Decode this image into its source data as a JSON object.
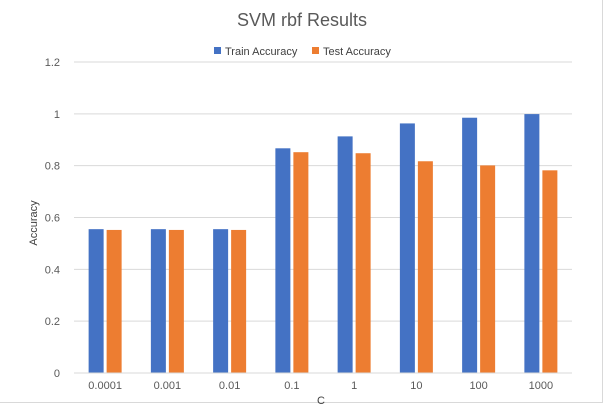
{
  "chart_data": {
    "type": "bar",
    "title": "SVM rbf Results",
    "xlabel": "C",
    "ylabel": "Accuracy",
    "categories": [
      "0.0001",
      "0.001",
      "0.01",
      "0.1",
      "1",
      "10",
      "100",
      "1000"
    ],
    "series": [
      {
        "name": "Train Accuracy",
        "color": "#4472c4",
        "values": [
          0.555,
          0.555,
          0.555,
          0.867,
          0.913,
          0.963,
          0.985,
          0.999
        ]
      },
      {
        "name": "Test Accuracy",
        "color": "#ed7d31",
        "values": [
          0.552,
          0.552,
          0.552,
          0.852,
          0.848,
          0.817,
          0.801,
          0.782
        ]
      }
    ],
    "ylim": [
      0,
      1.2
    ],
    "yticks": [
      "0",
      "0.2",
      "0.4",
      "0.6",
      "0.8",
      "1",
      "1.2"
    ],
    "grid": true,
    "legend_position": "top"
  }
}
